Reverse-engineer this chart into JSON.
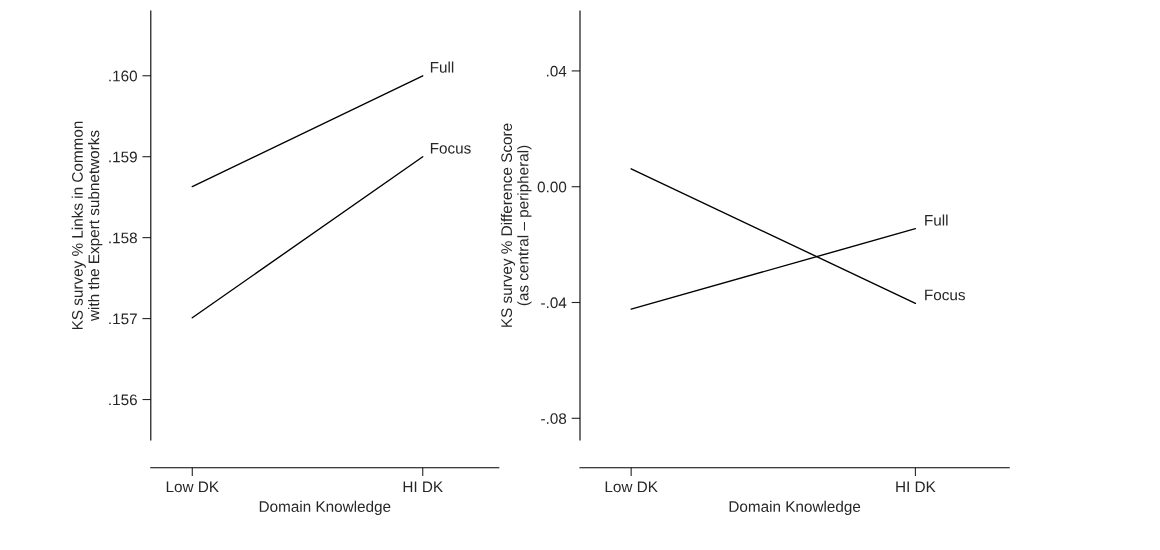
{
  "chart_data": [
    {
      "type": "line",
      "xlabel": "Domain Knowledge",
      "ylabel": "KS survey % Links in Common\nwith the Expert subnetworks",
      "categories": [
        "Low DK",
        "HI DK"
      ],
      "series": [
        {
          "name": "Full",
          "color": "#000000",
          "values": [
            0.15863,
            0.16
          ]
        },
        {
          "name": "Focus",
          "color": "#000000",
          "values": [
            0.15701,
            0.159
          ]
        }
      ],
      "ylim": [
        0.1555,
        0.1608
      ],
      "yticks": [
        {
          "value": 0.156,
          "label": ".156"
        },
        {
          "value": 0.157,
          "label": ".157"
        },
        {
          "value": 0.158,
          "label": ".158"
        },
        {
          "value": 0.159,
          "label": ".159"
        },
        {
          "value": 0.16,
          "label": ".160"
        }
      ],
      "grid": false,
      "legend": false
    },
    {
      "type": "line",
      "xlabel": "Domain Knowledge",
      "ylabel": "KS survey % Difference Score\n(as central – peripheral)",
      "categories": [
        "Low DK",
        "HI DK"
      ],
      "series": [
        {
          "name": "Full",
          "color": "#000000",
          "values": [
            -0.0423,
            -0.0145
          ]
        },
        {
          "name": "Focus",
          "color": "#000000",
          "values": [
            0.0062,
            -0.0403
          ]
        }
      ],
      "ylim": [
        -0.0875,
        0.0607
      ],
      "yticks": [
        {
          "value": -0.08,
          "label": "-.08"
        },
        {
          "value": -0.04,
          "label": "-.04"
        },
        {
          "value": 0.0,
          "label": "0.00"
        },
        {
          "value": 0.04,
          "label": ".04"
        }
      ],
      "grid": false,
      "legend": false
    }
  ]
}
